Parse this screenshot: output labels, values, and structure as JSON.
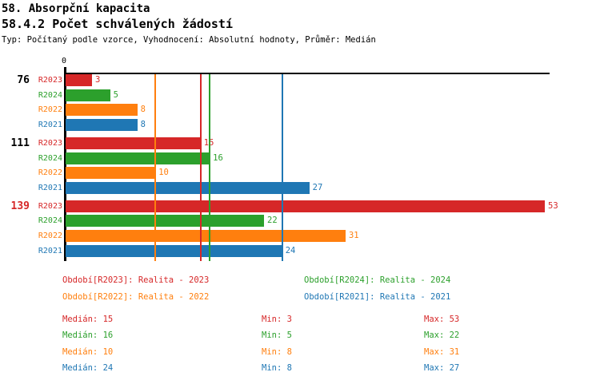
{
  "chart_data": {
    "type": "bar",
    "orientation": "horizontal",
    "title": "58. Absorpční kapacita",
    "subtitle": "58.4.2 Počet schválených žádostí",
    "meta_line": "Typ: Počítaný podle vzorce, Vyhodnocení: Absolutní hodnoty, Průměr: Medián",
    "x_axis": {
      "origin_tick_label": "0",
      "xmin": 0,
      "xmax": 53.5,
      "gridlines": false
    },
    "series_order": [
      "R2023",
      "R2024",
      "R2022",
      "R2021"
    ],
    "series_colors": {
      "R2023": "#d62728",
      "R2024": "#2ca02c",
      "R2022": "#ff7f0e",
      "R2021": "#1f77b4"
    },
    "groups": [
      {
        "label": "76",
        "label_color": "#000000",
        "values": {
          "R2023": 3,
          "R2024": 5,
          "R2022": 8,
          "R2021": 8
        }
      },
      {
        "label": "111",
        "label_color": "#000000",
        "values": {
          "R2023": 15,
          "R2024": 16,
          "R2022": 10,
          "R2021": 27
        }
      },
      {
        "label": "139",
        "label_color": "#d62728",
        "values": {
          "R2023": 53,
          "R2024": 22,
          "R2022": 31,
          "R2021": 24
        }
      }
    ],
    "median_reference_lines": [
      {
        "series": "R2022",
        "value": 10,
        "color": "#ff7f0e"
      },
      {
        "series": "R2023",
        "value": 15,
        "color": "#d62728"
      },
      {
        "series": "R2024",
        "value": 16,
        "color": "#2ca02c"
      },
      {
        "series": "R2021",
        "value": 24,
        "color": "#1f77b4"
      }
    ],
    "legend": [
      {
        "label": "Období[R2023]: Realita - 2023",
        "color": "#d62728",
        "column": 0,
        "row": 0
      },
      {
        "label": "Období[R2024]: Realita - 2024",
        "color": "#2ca02c",
        "column": 1,
        "row": 0
      },
      {
        "label": "Období[R2022]: Realita - 2022",
        "color": "#ff7f0e",
        "column": 0,
        "row": 1
      },
      {
        "label": "Období[R2021]: Realita - 2021",
        "color": "#1f77b4",
        "column": 1,
        "row": 1
      }
    ],
    "stats": [
      {
        "series": "R2023",
        "color": "#d62728",
        "median": "Medián: 15",
        "min": "Min: 3",
        "max": "Max: 53"
      },
      {
        "series": "R2024",
        "color": "#2ca02c",
        "median": "Medián: 16",
        "min": "Min: 5",
        "max": "Max: 22"
      },
      {
        "series": "R2022",
        "color": "#ff7f0e",
        "median": "Medián: 10",
        "min": "Min: 8",
        "max": "Max: 31"
      },
      {
        "series": "R2021",
        "color": "#1f77b4",
        "median": "Medián: 24",
        "min": "Min: 8",
        "max": "Max: 27"
      }
    ]
  }
}
